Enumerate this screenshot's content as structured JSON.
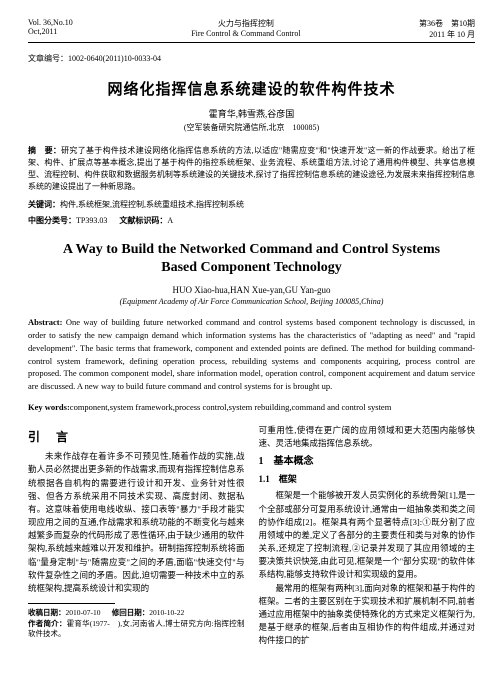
{
  "header": {
    "left_line1": "Vol. 36,No.10",
    "left_line2": "Oct,2011",
    "center_line1": "火力与指挥控制",
    "center_line2": "Fire Control & Command Control",
    "right_line1": "第36卷　第10期",
    "right_line2": "2011 年 10 月"
  },
  "article_no": "文章编号：1002-0640(2011)10-0033-04",
  "title_cn": "网络化指挥信息系统建设的软件构件技术",
  "authors_cn": "霍育华,韩雪燕,谷彦国",
  "affil_cn": "(空军装备研究院通信所,北京　100085)",
  "abstract_cn_label": "摘　要：",
  "abstract_cn": "研究了基于构件技术建设网络化指挥信息系统的方法,以适应\"随需应变\"和\"快速开发\"这一新的作战要求。给出了框架、构件、扩展点等基本概念,提出了基于构件的指控系统框架、业务流程、系统重组方法,讨论了通用构件模型、共享信息模型、流程控制、构件获取和数据服务机制等系统建设的关键技术,探讨了指挥控制信息系统的建设途径,为发展未来指挥控制信息系统的建设提出了一种新思路。",
  "keywords_cn_label": "关键词：",
  "keywords_cn": "构件,系统框架,流程控制,系统重组技术,指挥控制系统",
  "clc_label": "中图分类号：",
  "clc": "TP393.03",
  "doccode_label": "文献标识码：",
  "doccode": "A",
  "title_en_line1": "A Way to Build the Networked Command and Control Systems",
  "title_en_line2": "Based Component Technology",
  "authors_en": "HUO Xiao-hua,HAN Xue-yan,GU Yan-guo",
  "affil_en": "(Equipment Academy of Air Force Communication School, Beijing 100085,China)",
  "abstract_en_label": "Abstract:",
  "abstract_en": "One way of building future networked command and control systems based component technology is discussed, in order to satisfy the new campaign demand which information systems has the characteristics of \"adapting as need\" and \"rapid development\". The basic terms that framework, component and extended points are defined. The method for building command-control system framework, defining operation process, rebuilding systems and components acquiring, process control are proposed. The common component model, share information model, operation control, component acquirement and datum service are discussed. A new way to build future command and control systems for is brought up.",
  "keywords_en_label": "Key words:",
  "keywords_en": "component,system framework,process control,system rebuilding,command and control system",
  "left_col": {
    "intro_head": "引　言",
    "intro_body": "未来作战存在着许多不可预见性,随着作战的实施,战勤人员必然提出更多新的作战需求,而现有指挥控制信息系统根据各自机构的需要进行设计和开发、业务针对性很强、但各方系统采用不同技术实现、高度封闭、数据私有。这意味着使用电线收纵、接口表等\"暴力\"手段才能实现应用之间的互通,作战需求和系统功能的不断变化与越来越繁多而复杂的代码形成了恶性循环,由于缺少通用的软件架构,系统越来越难以开发和维护。研制指挥控制系统将面临\"量身定制\"与\"随需应变\"之间的矛盾,面临\"快速交付\"与软件复杂性之间的矛盾。因此,迫切需要一种技术中立的系统框架构,提高系统设计和实现的",
    "footnote_recv_label": "收稿日期：",
    "footnote_recv": "2010-07-10",
    "footnote_rev_label": "修回日期：",
    "footnote_rev": "2010-10-22",
    "footnote_author_label": "作者简介：",
    "footnote_author": "霍育华(1977-　),女,河南省人,博士研究方向:指挥控制软件技术。"
  },
  "right_col": {
    "top_para": "可重用性,使得在更广阔的应用领域和更大范围内能够快速、灵活地集成指挥信息系统。",
    "sec1_head": "1　基本概念",
    "sec11_head": "1.1　框架",
    "sec11_body": "框架是一个能够被开发人员实例化的系统骨架[1],是一个全部或部分可复用系统设计,通常由一组抽象类和类之间的协作组成[2]。框架具有两个显著特点[3]:①既分割了应用领域中的差,定义了各部分的主要责任和类与对象的协作关系,还规定了控制流程,②记录并发现了其应用领域的主要决策共识快笼,由此可见,框架是一个\"部分实现\"的软件体系结构,能够支持软件设计和实现级的复用。",
    "sec11_body2": "最常用的框架有两种[3],面向对象的框架和基于构件的框架。二者的主要区别在于实现技术和扩展机制不同,前者通过应用框架中的抽象类使特殊化的方式来定义框架行为,是基于继承的框架,后者由互相协作的构件组成,并通过对构件接口的扩"
  }
}
